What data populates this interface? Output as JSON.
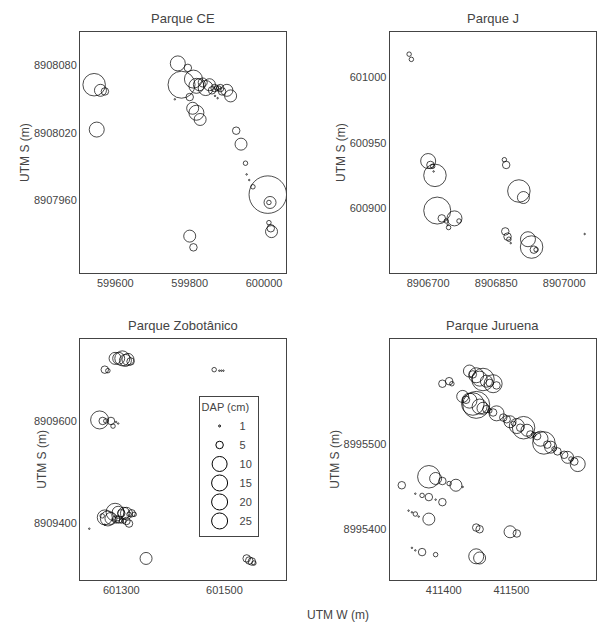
{
  "xlabel": "UTM W (m)",
  "chart_data": [
    {
      "type": "scatter",
      "title": "Parque CE",
      "ylabel": "UTM S (m)",
      "color": "#000000",
      "marker": "circle-open",
      "grid": false,
      "xlim": [
        599505,
        600060
      ],
      "ylim": [
        8907895,
        8908110
      ],
      "xticks": [
        599600,
        599800,
        600000
      ],
      "yticks": [
        8907960,
        8908020,
        8908080
      ],
      "x": [
        599543,
        599560,
        599572,
        599550,
        599768,
        599778,
        599795,
        599810,
        599818,
        599826,
        599835,
        599843,
        599853,
        599860,
        599867,
        599872,
        599878,
        599882,
        599887,
        599800,
        599808,
        599818,
        599828,
        599868,
        599875,
        599900,
        599910,
        599760,
        599925,
        599938,
        599950,
        599953,
        599960,
        599970,
        600010,
        600013,
        600016,
        600013,
        600018,
        600020,
        599800,
        599810
      ],
      "y": [
        8908063,
        8908058,
        8908057,
        8908023,
        8908082,
        8908063,
        8908078,
        8908068,
        8908062,
        8908063,
        8908065,
        8908060,
        8908063,
        8908058,
        8908060,
        8908060,
        8908060,
        8908060,
        8908057,
        8908052,
        8908042,
        8908038,
        8908032,
        8908053,
        8908051,
        8908058,
        8908053,
        8908050,
        8908022,
        8908010,
        8907993,
        8907983,
        8907978,
        8907972,
        8907965,
        8907958,
        8907958,
        8907940,
        8907935,
        8907932,
        8907928,
        8907918
      ],
      "dap": [
        15,
        8,
        5,
        10,
        10,
        18,
        5,
        12,
        10,
        8,
        6,
        10,
        8,
        5,
        5,
        3,
        3,
        5,
        5,
        5,
        8,
        10,
        8,
        1,
        1,
        8,
        8,
        1,
        5,
        8,
        3,
        1,
        1,
        3,
        25,
        3,
        8,
        3,
        5,
        8,
        8,
        5
      ]
    },
    {
      "type": "scatter",
      "title": "Parque J",
      "ylabel": "UTM S (m)",
      "color": "#000000",
      "marker": "circle-open",
      "grid": false,
      "xlim": [
        8906615,
        8907070
      ],
      "ylim": [
        600850,
        601035
      ],
      "xticks": [
        8906700,
        8906850,
        8907000
      ],
      "yticks": [
        600900,
        600950,
        601000
      ],
      "x": [
        8906658,
        8906663,
        8906700,
        8906705,
        8906710,
        8906712,
        8906715,
        8906720,
        8906730,
        8906740,
        8906743,
        8906745,
        8906758,
        8906768,
        8906870,
        8906875,
        8906878,
        8906882,
        8906868,
        8906872,
        8906900,
        8906910,
        8906920,
        8906928,
        8906933,
        8906938,
        8907045
      ],
      "y": [
        601018,
        601014,
        600936,
        600933,
        600932,
        600928,
        600925,
        600898,
        600892,
        600890,
        600887,
        600885,
        600892,
        600890,
        600882,
        600878,
        600876,
        600873,
        600937,
        600933,
        600913,
        600908,
        600876,
        600870,
        600868,
        600868,
        600880
      ],
      "dap": [
        3,
        3,
        10,
        5,
        3,
        1,
        15,
        18,
        5,
        3,
        1,
        3,
        10,
        3,
        5,
        5,
        3,
        1,
        3,
        5,
        15,
        8,
        10,
        15,
        5,
        3,
        1
      ]
    },
    {
      "type": "scatter",
      "title": "Parque Zobotânico",
      "ylabel": "UTM S (m)",
      "color": "#000000",
      "marker": "circle-open",
      "grid": false,
      "xlim": [
        601220,
        601620
      ],
      "ylim": [
        8909290,
        8909760
      ],
      "xticks": [
        601300,
        601500
      ],
      "yticks": [
        8909400,
        8909600
      ],
      "x": [
        601288,
        601295,
        601302,
        601308,
        601313,
        601318,
        601268,
        601274,
        601480,
        601490,
        601494,
        601498,
        601258,
        601264,
        601270,
        601280,
        601290,
        601284,
        601294,
        601288,
        601294,
        601300,
        601305,
        601310,
        601315,
        601320,
        601325,
        601263,
        601268,
        601274,
        601280,
        601284,
        601290,
        601295,
        601300,
        601305,
        601310,
        601315,
        601268,
        601238,
        601348,
        601543,
        601548,
        601553,
        601557
      ],
      "y": [
        8909722,
        8909722,
        8909722,
        8909718,
        8909720,
        8909716,
        8909700,
        8909698,
        8909700,
        8909698,
        8909698,
        8909698,
        8909602,
        8909600,
        8909600,
        8909600,
        8909598,
        8909590,
        8909595,
        8909422,
        8909422,
        8909420,
        8909420,
        8909420,
        8909418,
        8909420,
        8909418,
        8909415,
        8909412,
        8909410,
        8909410,
        8909408,
        8909408,
        8909408,
        8909405,
        8909405,
        8909405,
        8909400,
        8909398,
        8909390,
        8909332,
        8909332,
        8909328,
        8909326,
        8909323
      ],
      "dap": [
        8,
        8,
        10,
        8,
        8,
        5,
        5,
        3,
        3,
        1,
        1,
        1,
        12,
        5,
        3,
        5,
        1,
        3,
        1,
        12,
        8,
        5,
        8,
        8,
        3,
        5,
        3,
        3,
        10,
        10,
        8,
        1,
        5,
        5,
        3,
        3,
        5,
        5,
        1,
        1,
        8,
        5,
        5,
        5,
        3
      ],
      "size_legend_title": "DAP (cm)",
      "size_legend": [
        1,
        5,
        10,
        15,
        20,
        25
      ]
    },
    {
      "type": "scatter",
      "title": "Parque Juruena",
      "ylabel": "UTM S (m)",
      "color": "#000000",
      "marker": "circle-open",
      "grid": false,
      "xlim": [
        411320,
        411625
      ],
      "ylim": [
        8995340,
        8995625
      ],
      "xticks": [
        411400,
        411500
      ],
      "yticks": [
        8995400,
        8995500
      ],
      "x": [
        411338,
        411398,
        411408,
        411412,
        411438,
        411443,
        411448,
        411453,
        411458,
        411463,
        411468,
        411473,
        411478,
        411428,
        411433,
        411438,
        411443,
        411448,
        411453,
        411458,
        411463,
        411468,
        411473,
        411478,
        411488,
        411493,
        411498,
        411503,
        411508,
        411513,
        411518,
        411523,
        411528,
        411533,
        411538,
        411543,
        411548,
        411553,
        411558,
        411563,
        411568,
        411573,
        411578,
        411583,
        411588,
        411593,
        411598,
        411378,
        411388,
        411398,
        411408,
        411418,
        411428,
        411358,
        411368,
        411378,
        411388,
        411398,
        411348,
        411353,
        411358,
        411363,
        411378,
        411448,
        411453,
        411498,
        411508,
        411353,
        411358,
        411368,
        411388,
        411448,
        411453
      ],
      "y": [
        8995452,
        8995572,
        8995575,
        8995572,
        8995587,
        8995583,
        8995582,
        8995578,
        8995577,
        8995575,
        8995573,
        8995572,
        8995570,
        8995557,
        8995553,
        8995552,
        8995548,
        8995547,
        8995545,
        8995543,
        8995542,
        8995540,
        8995538,
        8995537,
        8995532,
        8995530,
        8995527,
        8995525,
        8995522,
        8995520,
        8995520,
        8995517,
        8995512,
        8995512,
        8995510,
        8995507,
        8995502,
        8995500,
        8995497,
        8995495,
        8995492,
        8995490,
        8995488,
        8995485,
        8995483,
        8995480,
        8995477,
        8995462,
        8995460,
        8995457,
        8995454,
        8995452,
        8995450,
        8995442,
        8995440,
        8995438,
        8995435,
        8995432,
        8995422,
        8995420,
        8995418,
        8995415,
        8995412,
        8995402,
        8995400,
        8995397,
        8995395,
        8995378,
        8995375,
        8995373,
        8995370,
        8995368,
        8995366
      ],
      "dap": [
        5,
        5,
        5,
        3,
        8,
        5,
        10,
        10,
        15,
        8,
        5,
        12,
        5,
        8,
        5,
        10,
        15,
        18,
        10,
        8,
        5,
        3,
        5,
        10,
        5,
        5,
        8,
        3,
        10,
        5,
        15,
        8,
        5,
        3,
        5,
        10,
        15,
        5,
        8,
        3,
        5,
        1,
        5,
        8,
        3,
        5,
        10,
        15,
        8,
        5,
        3,
        8,
        1,
        1,
        3,
        5,
        1,
        5,
        1,
        1,
        3,
        1,
        8,
        5,
        5,
        8,
        5,
        1,
        1,
        5,
        3,
        10,
        8
      ]
    }
  ]
}
